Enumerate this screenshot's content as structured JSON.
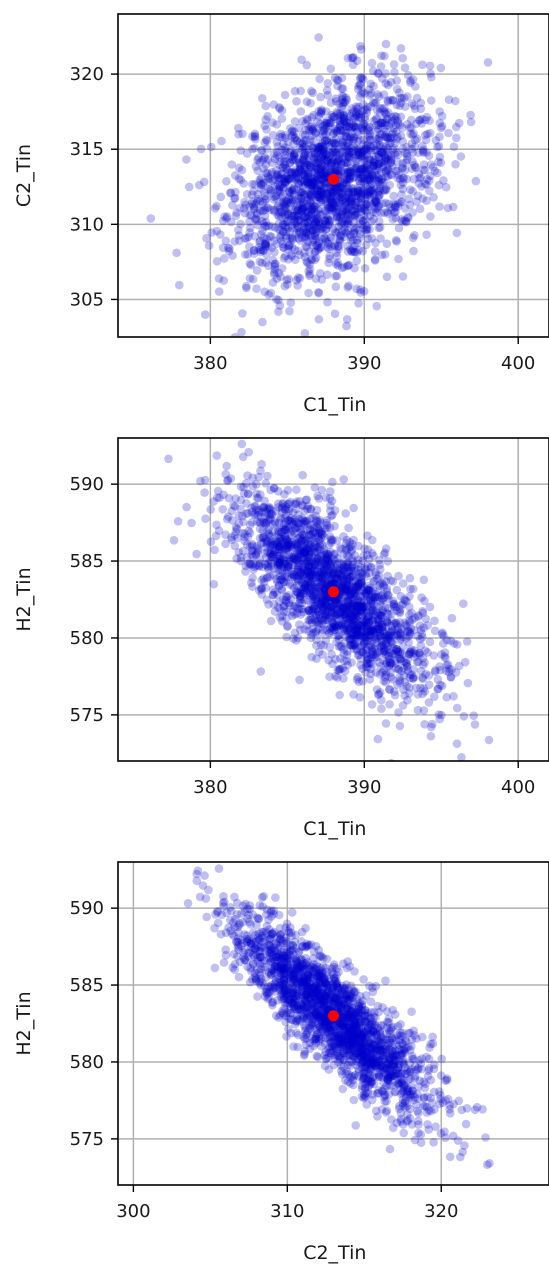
{
  "chart_data": [
    {
      "type": "scatter",
      "xlabel": "C1_Tin",
      "ylabel": "C2_Tin",
      "xlim": [
        374,
        402
      ],
      "ylim": [
        302.5,
        324
      ],
      "xticks": [
        380,
        390,
        400
      ],
      "yticks": [
        305,
        310,
        315,
        320
      ],
      "grid": true,
      "series": [
        {
          "values": "gaussian cloud, ~2000 points",
          "center": [
            388,
            313
          ],
          "std": [
            3.2,
            3.2
          ],
          "corr": 0.35,
          "color": "#0000cc"
        },
        {
          "values": "center point",
          "points": [
            [
              388,
              313
            ]
          ],
          "color": "#ff0000"
        }
      ]
    },
    {
      "type": "scatter",
      "xlabel": "C1_Tin",
      "ylabel": "H2_Tin",
      "xlim": [
        374,
        402
      ],
      "ylim": [
        572,
        593
      ],
      "xticks": [
        380,
        390,
        400
      ],
      "yticks": [
        575,
        580,
        585,
        590
      ],
      "grid": true,
      "series": [
        {
          "values": "gaussian cloud, ~2000 points",
          "center": [
            388,
            583
          ],
          "std": [
            3.2,
            3.2
          ],
          "corr": -0.72,
          "color": "#0000cc"
        },
        {
          "values": "center point",
          "points": [
            [
              388,
              583
            ]
          ],
          "color": "#ff0000"
        }
      ]
    },
    {
      "type": "scatter",
      "xlabel": "C2_Tin",
      "ylabel": "H2_Tin",
      "xlim": [
        299,
        327
      ],
      "ylim": [
        572,
        593
      ],
      "xticks": [
        300,
        310,
        320
      ],
      "yticks": [
        575,
        580,
        585,
        590
      ],
      "grid": true,
      "series": [
        {
          "values": "gaussian cloud, ~2000 points",
          "center": [
            313,
            583
          ],
          "std": [
            3.2,
            3.2
          ],
          "corr": -0.86,
          "color": "#0000cc"
        },
        {
          "values": "center point",
          "points": [
            [
              313,
              583
            ]
          ],
          "color": "#ff0000"
        }
      ]
    }
  ]
}
